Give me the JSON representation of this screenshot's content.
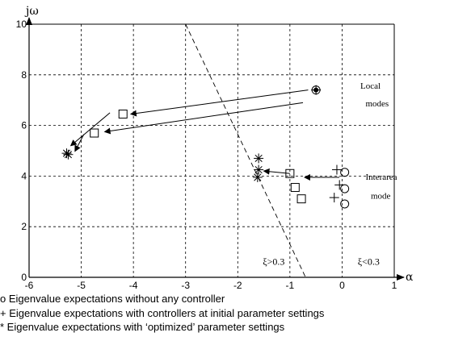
{
  "chart_data": {
    "type": "scatter",
    "title": "",
    "xlabel": "α",
    "ylabel": "jω",
    "xlim": [
      -6,
      1
    ],
    "ylim": [
      0,
      10
    ],
    "grid": true,
    "x_ticks": [
      "-6",
      "-5",
      "-4",
      "-3",
      "-2",
      "-1",
      "0",
      "1"
    ],
    "y_ticks": [
      "0",
      "2",
      "4",
      "6",
      "8",
      "10"
    ],
    "series": [
      {
        "name": "Eigenvalue expectations without any controller",
        "marker": "o",
        "points": [
          [
            -0.5,
            7.4
          ],
          [
            0.05,
            4.15
          ],
          [
            0.05,
            3.5
          ],
          [
            0.05,
            2.9
          ]
        ]
      },
      {
        "name": "Eigenvalue expectations with controllers at initial parameter settings",
        "marker": "+",
        "points": [
          [
            -0.5,
            7.4
          ],
          [
            -0.1,
            4.25
          ],
          [
            -0.05,
            3.65
          ],
          [
            -0.15,
            3.15
          ]
        ]
      },
      {
        "name": "Eigenvalue expectations with ‘optimized’ parameter settings",
        "marker": "*",
        "points": [
          [
            -5.28,
            4.9
          ],
          [
            -5.25,
            4.85
          ],
          [
            -1.6,
            4.7
          ],
          [
            -1.6,
            4.25
          ],
          [
            -1.62,
            3.95
          ]
        ]
      },
      {
        "name": "",
        "marker": "square",
        "points": [
          [
            -4.2,
            6.45
          ],
          [
            -4.75,
            5.7
          ],
          [
            -1.0,
            4.1
          ],
          [
            -0.9,
            3.55
          ],
          [
            -0.78,
            3.1
          ]
        ]
      }
    ],
    "arrows": [
      {
        "from": [
          -0.65,
          7.4
        ],
        "to": [
          -4.05,
          6.45
        ]
      },
      {
        "from": [
          -0.75,
          6.9
        ],
        "to": [
          -4.55,
          5.75
        ]
      },
      {
        "from": [
          -4.45,
          6.5
        ],
        "to": [
          -5.2,
          5.2
        ]
      },
      {
        "from": [
          -4.95,
          5.65
        ],
        "to": [
          -5.12,
          4.98
        ]
      },
      {
        "from": [
          -0.05,
          3.95
        ],
        "to": [
          -0.72,
          3.95
        ]
      },
      {
        "from": [
          -1.0,
          4.1
        ],
        "to": [
          -1.5,
          4.2
        ]
      }
    ],
    "damping_line": {
      "from": [
        -3.0,
        10.0
      ],
      "to": [
        -0.7,
        0.0
      ]
    },
    "annotations": [
      {
        "text": "Local",
        "x": 0.35,
        "y": 7.45
      },
      {
        "text": "modes",
        "x": 0.45,
        "y": 6.75
      },
      {
        "text": "Interarea",
        "x": 0.45,
        "y": 3.85
      },
      {
        "text": "mode",
        "x": 0.55,
        "y": 3.1
      },
      {
        "text": "ξ>0.3",
        "x": -1.52,
        "y": 0.5
      },
      {
        "text": "ξ<0.3",
        "x": 0.3,
        "y": 0.5
      }
    ]
  },
  "legend": [
    "o Eigenvalue expectations without any controller",
    "+ Eigenvalue expectations with controllers at initial parameter settings",
    "* Eigenvalue expectations with ‘optimized’ parameter settings"
  ]
}
